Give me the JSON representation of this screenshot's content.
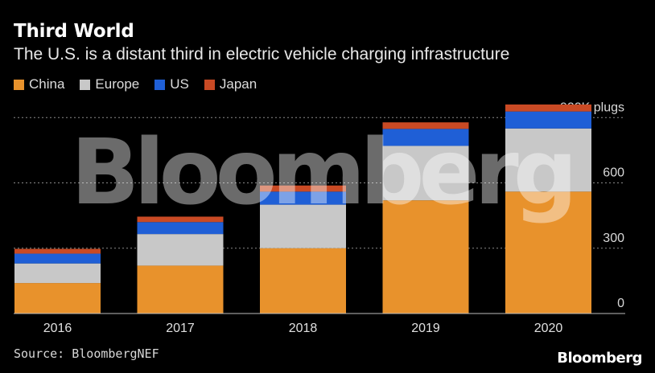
{
  "header": {
    "title": "Third World",
    "subtitle": "The U.S. is a distant third in electric vehicle charging infrastructure"
  },
  "legend": [
    {
      "label": "China",
      "color": "#e8922c"
    },
    {
      "label": "Europe",
      "color": "#c8c8c8"
    },
    {
      "label": "US",
      "color": "#1f5fd6"
    },
    {
      "label": "Japan",
      "color": "#c94a24"
    }
  ],
  "chart_data": {
    "type": "bar",
    "stacked": true,
    "categories": [
      "2016",
      "2017",
      "2018",
      "2019",
      "2020"
    ],
    "series": [
      {
        "name": "China",
        "color": "#e8922c",
        "values": [
          140,
          220,
          300,
          520,
          560
        ]
      },
      {
        "name": "Europe",
        "color": "#c8c8c8",
        "values": [
          90,
          145,
          200,
          250,
          290
        ]
      },
      {
        "name": "US",
        "color": "#1f5fd6",
        "values": [
          45,
          55,
          60,
          78,
          78
        ]
      },
      {
        "name": "Japan",
        "color": "#c94a24",
        "values": [
          22,
          25,
          28,
          30,
          32
        ]
      }
    ],
    "yticks": [
      {
        "value": 0,
        "label": "0"
      },
      {
        "value": 300,
        "label": "300"
      },
      {
        "value": 600,
        "label": "600"
      },
      {
        "value": 900,
        "label": "900K plugs"
      }
    ],
    "ylim": [
      0,
      960
    ],
    "grid": true
  },
  "footer": {
    "source": "Source: BloombergNEF",
    "brand": "Bloomberg"
  },
  "watermark": "Bloomberg"
}
